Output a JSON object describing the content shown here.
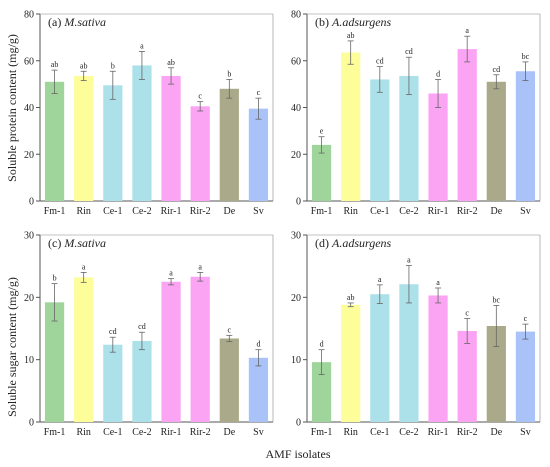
{
  "chart_data": [
    {
      "type": "bar",
      "panel": "(a)",
      "species": "M.sativa",
      "categories": [
        "Fm-1",
        "Rin",
        "Ce-1",
        "Ce-2",
        "Rir-1",
        "Rir-2",
        "De",
        "Sv"
      ],
      "values": [
        51,
        53.5,
        49.5,
        58,
        53.5,
        40.5,
        48,
        39.5
      ],
      "errors": [
        5,
        2,
        6,
        6,
        3.5,
        2,
        4,
        4.5
      ],
      "letters": [
        "ab",
        "ab",
        "b",
        "a",
        "ab",
        "c",
        "b",
        "c"
      ],
      "ylim": [
        0,
        80
      ],
      "yticks": [
        0,
        20,
        40,
        60,
        80
      ]
    },
    {
      "type": "bar",
      "panel": "(b)",
      "species": "A.adsurgens",
      "categories": [
        "Fm-1",
        "Rin",
        "Ce-1",
        "Ce-2",
        "Rir-1",
        "Rir-2",
        "De",
        "Sv"
      ],
      "values": [
        24,
        63.5,
        52,
        53.5,
        46,
        65,
        51,
        55.5
      ],
      "errors": [
        3.5,
        5,
        5.5,
        8,
        6,
        5.5,
        3,
        4
      ],
      "letters": [
        "e",
        "ab",
        "cd",
        "cd",
        "d",
        "a",
        "cd",
        "bc"
      ],
      "ylim": [
        0,
        80
      ],
      "yticks": [
        0,
        20,
        40,
        60,
        80
      ]
    },
    {
      "type": "bar",
      "panel": "(c)",
      "species": "M.sativa",
      "categories": [
        "Fm-1",
        "Rin",
        "Ce-1",
        "Ce-2",
        "Rir-1",
        "Rir-2",
        "De",
        "Sv"
      ],
      "values": [
        19.2,
        23.2,
        12.4,
        13,
        22.5,
        23.3,
        13.4,
        10.3
      ],
      "errors": [
        3,
        0.8,
        1.2,
        1.4,
        0.5,
        0.7,
        0.5,
        1.3
      ],
      "letters": [
        "b",
        "a",
        "cd",
        "cd",
        "a",
        "a",
        "c",
        "d"
      ],
      "ylim": [
        0,
        30
      ],
      "yticks": [
        0,
        10,
        20,
        30
      ]
    },
    {
      "type": "bar",
      "panel": "(d)",
      "species": "A.adsurgens",
      "categories": [
        "Fm-1",
        "Rin",
        "Ce-1",
        "Ce-2",
        "Rir-1",
        "Rir-2",
        "De",
        "Sv"
      ],
      "values": [
        9.6,
        18.8,
        20.5,
        22.1,
        20.3,
        14.6,
        15.4,
        14.5
      ],
      "errors": [
        2,
        0.3,
        1.5,
        3,
        1.2,
        2,
        3.3,
        1.2
      ],
      "letters": [
        "d",
        "ab",
        "a",
        "a",
        "a",
        "c",
        "bc",
        "c"
      ],
      "ylim": [
        0,
        30
      ],
      "yticks": [
        0,
        10,
        20,
        30
      ]
    }
  ],
  "bar_colors": [
    "#9fd59b",
    "#fdfd9a",
    "#ade1ea",
    "#ade1ea",
    "#fba4f3",
    "#fba4f3",
    "#aaaa8a",
    "#a9c2f8"
  ],
  "ylabel_top": "Soluble protein content (mg/g)",
  "ylabel_bottom": "Soluble sugar content (mg/g)",
  "xlabel": "AMF isolates"
}
